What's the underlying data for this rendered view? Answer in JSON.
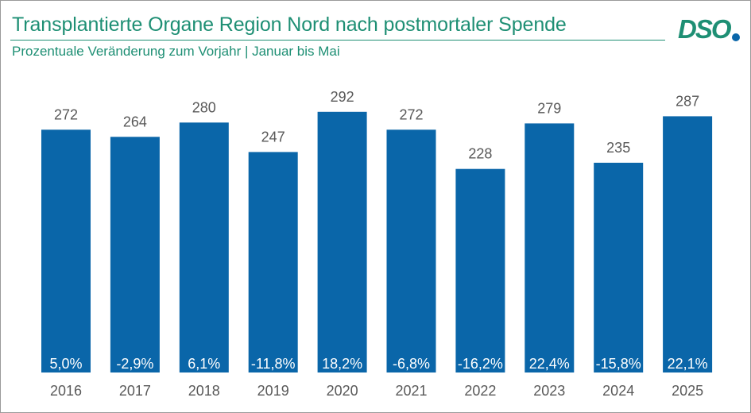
{
  "header": {
    "title": "Transplantierte Organe Region Nord nach postmortaler Spende",
    "subtitle": "Prozentuale Veränderung zum Vorjahr | Januar bis Mai",
    "logo_text": "DSO"
  },
  "colors": {
    "accent": "#1e8f74",
    "bar": "#0a66a9",
    "value_label": "#595959",
    "pct_label": "#ffffff",
    "logo_dot": "#0a66a9"
  },
  "chart_data": {
    "type": "bar",
    "title": "Transplantierte Organe Region Nord nach postmortaler Spende",
    "subtitle": "Prozentuale Veränderung zum Vorjahr | Januar bis Mai",
    "categories": [
      "2016",
      "2017",
      "2018",
      "2019",
      "2020",
      "2021",
      "2022",
      "2023",
      "2024",
      "2025"
    ],
    "values": [
      272,
      264,
      280,
      247,
      292,
      272,
      228,
      279,
      235,
      287
    ],
    "pct_change": [
      "5,0%",
      "-2,9%",
      "6,1%",
      "-11,8%",
      "18,2%",
      "-6,8%",
      "-16,2%",
      "22,4%",
      "-15,8%",
      "22,1%"
    ],
    "xlabel": "",
    "ylabel": "",
    "ylim": [
      0,
      300
    ],
    "grid": false,
    "legend": "none"
  }
}
